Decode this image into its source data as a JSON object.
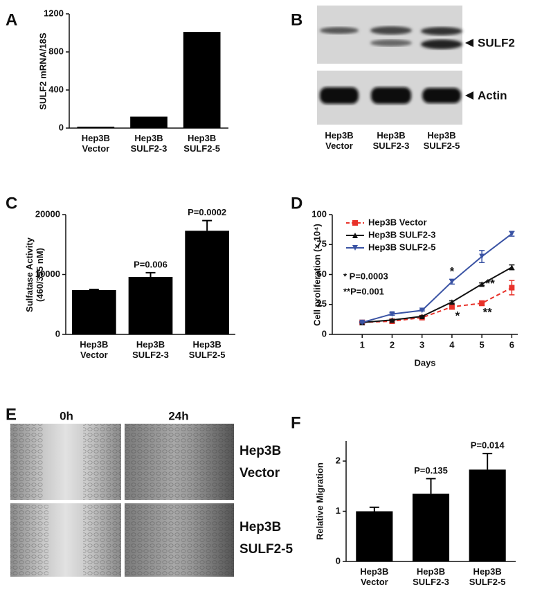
{
  "chart_data": [
    {
      "label": "A",
      "type": "bar",
      "ylabel": "SULF2 mRNA/18S",
      "categories": [
        "Hep3B\nVector",
        "Hep3B\nSULF2-3",
        "Hep3B\nSULF2-5"
      ],
      "values": [
        15,
        120,
        1010
      ],
      "color": "#000000",
      "ylim": [
        0,
        1200
      ],
      "yticks": [
        0,
        400,
        800,
        1200
      ]
    },
    {
      "label": "C",
      "type": "bar",
      "ylabel": "Sulfatase Activity\n(460/355 nM)",
      "categories": [
        "Hep3B\nVector",
        "Hep3B\nSULF2-3",
        "Hep3B\nSULF2-5"
      ],
      "values": [
        7400,
        9600,
        17300
      ],
      "errors": [
        100,
        700,
        1700
      ],
      "value_annotations": [
        null,
        "P=0.006",
        "P=0.0002"
      ],
      "color": "#000000",
      "ylim": [
        0,
        20000
      ],
      "yticks": [
        0,
        10000,
        20000
      ]
    },
    {
      "label": "D",
      "type": "line",
      "ylabel": "Cell proliferation (× 10⁴)",
      "xlabel": "Days",
      "x": [
        1,
        2,
        3,
        4,
        5,
        6
      ],
      "xlim": [
        0,
        6.2
      ],
      "xticks": [
        1,
        2,
        3,
        4,
        5,
        6
      ],
      "ylim": [
        0,
        100
      ],
      "yticks": [
        0,
        25,
        50,
        75,
        100
      ],
      "legend": "upper left",
      "annotations": [
        "* P=0.0003",
        "**P=0.001"
      ],
      "series": [
        {
          "name": "Hep3B Vector",
          "color": "#e8322a",
          "linestyle": "dashed",
          "marker": "square",
          "values": [
            10,
            11,
            14,
            23,
            26,
            39
          ],
          "errors": [
            0.5,
            0.5,
            0.5,
            2,
            2,
            6
          ],
          "point_labels": [
            null,
            null,
            null,
            "*",
            "**",
            null
          ]
        },
        {
          "name": "Hep3B SULF2-3",
          "color": "#111111",
          "linestyle": "solid",
          "marker": "triangle-up",
          "values": [
            10,
            12,
            15,
            27,
            42,
            56
          ],
          "errors": [
            0.5,
            0.5,
            0.5,
            1,
            1,
            2
          ],
          "point_labels": [
            null,
            null,
            null,
            null,
            "**",
            null
          ]
        },
        {
          "name": "Hep3B SULF2-5",
          "color": "#3a53a4",
          "linestyle": "solid",
          "marker": "triangle-down",
          "values": [
            10,
            17,
            20,
            44,
            65,
            84
          ],
          "errors": [
            0.5,
            1,
            0.5,
            2,
            5,
            2
          ],
          "point_labels": [
            null,
            null,
            null,
            "*",
            null,
            null
          ]
        }
      ]
    },
    {
      "label": "F",
      "type": "bar",
      "ylabel": "Relative Migration",
      "categories": [
        "Hep3B\nVector",
        "Hep3B\nSULF2-3",
        "Hep3B\nSULF2-5"
      ],
      "values": [
        1.0,
        1.35,
        1.83
      ],
      "errors": [
        0.08,
        0.3,
        0.32
      ],
      "value_annotations": [
        null,
        "P=0.135",
        "P=0.014"
      ],
      "color": "#000000",
      "ylim": [
        0,
        2.4
      ],
      "yticks": [
        0,
        1,
        2
      ]
    }
  ],
  "blot": {
    "label": "B",
    "lanes": [
      "Hep3B\nVector",
      "Hep3B\nSULF2-3",
      "Hep3B\nSULF2-5"
    ],
    "bands": [
      "SULF2",
      "Actin"
    ]
  },
  "wound": {
    "label": "E",
    "times": [
      "0h",
      "24h"
    ],
    "rows": [
      "Hep3B\nVector",
      "Hep3B\nSULF2-5"
    ]
  }
}
